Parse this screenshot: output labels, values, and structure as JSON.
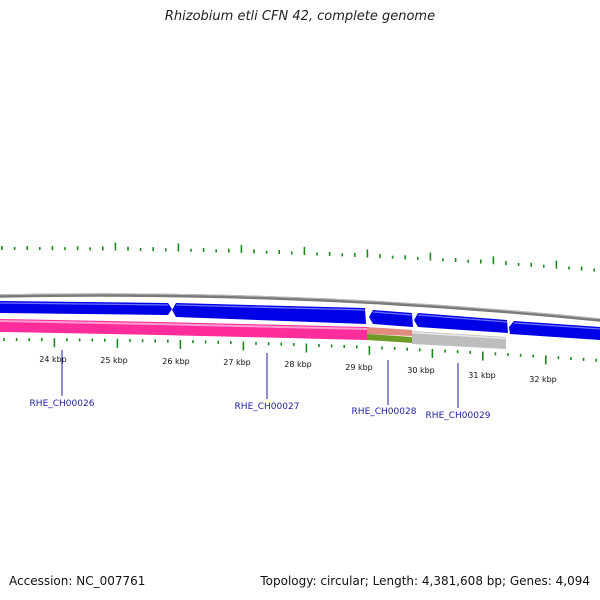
{
  "title": "Rhizobium etli CFN 42, complete genome",
  "accession": "Accession: NC_007761",
  "topology": "Topology: circular; Length: 4,381,608 bp; Genes: 4,094",
  "scale_labels": [
    "24 kbp",
    "25 kbp",
    "26 kbp",
    "27 kbp",
    "28 kbp",
    "29 kbp",
    "30 kbp",
    "31 kbp",
    "32 kbp"
  ],
  "gene_labels": [
    "RHE_CH00026",
    "RHE_CH00027",
    "RHE_CH00028",
    "RHE_CH00029"
  ],
  "colors": {
    "forward_gene": "#0000e6",
    "rna_gene": "#ff2d9b",
    "segment_red": "#e08a80",
    "segment_green": "#6d9a26",
    "pseudo_gene": "#bdbdbd",
    "backbone": "#808080",
    "tick": "#1b8a1b",
    "label_line": "#1f1f9f"
  }
}
